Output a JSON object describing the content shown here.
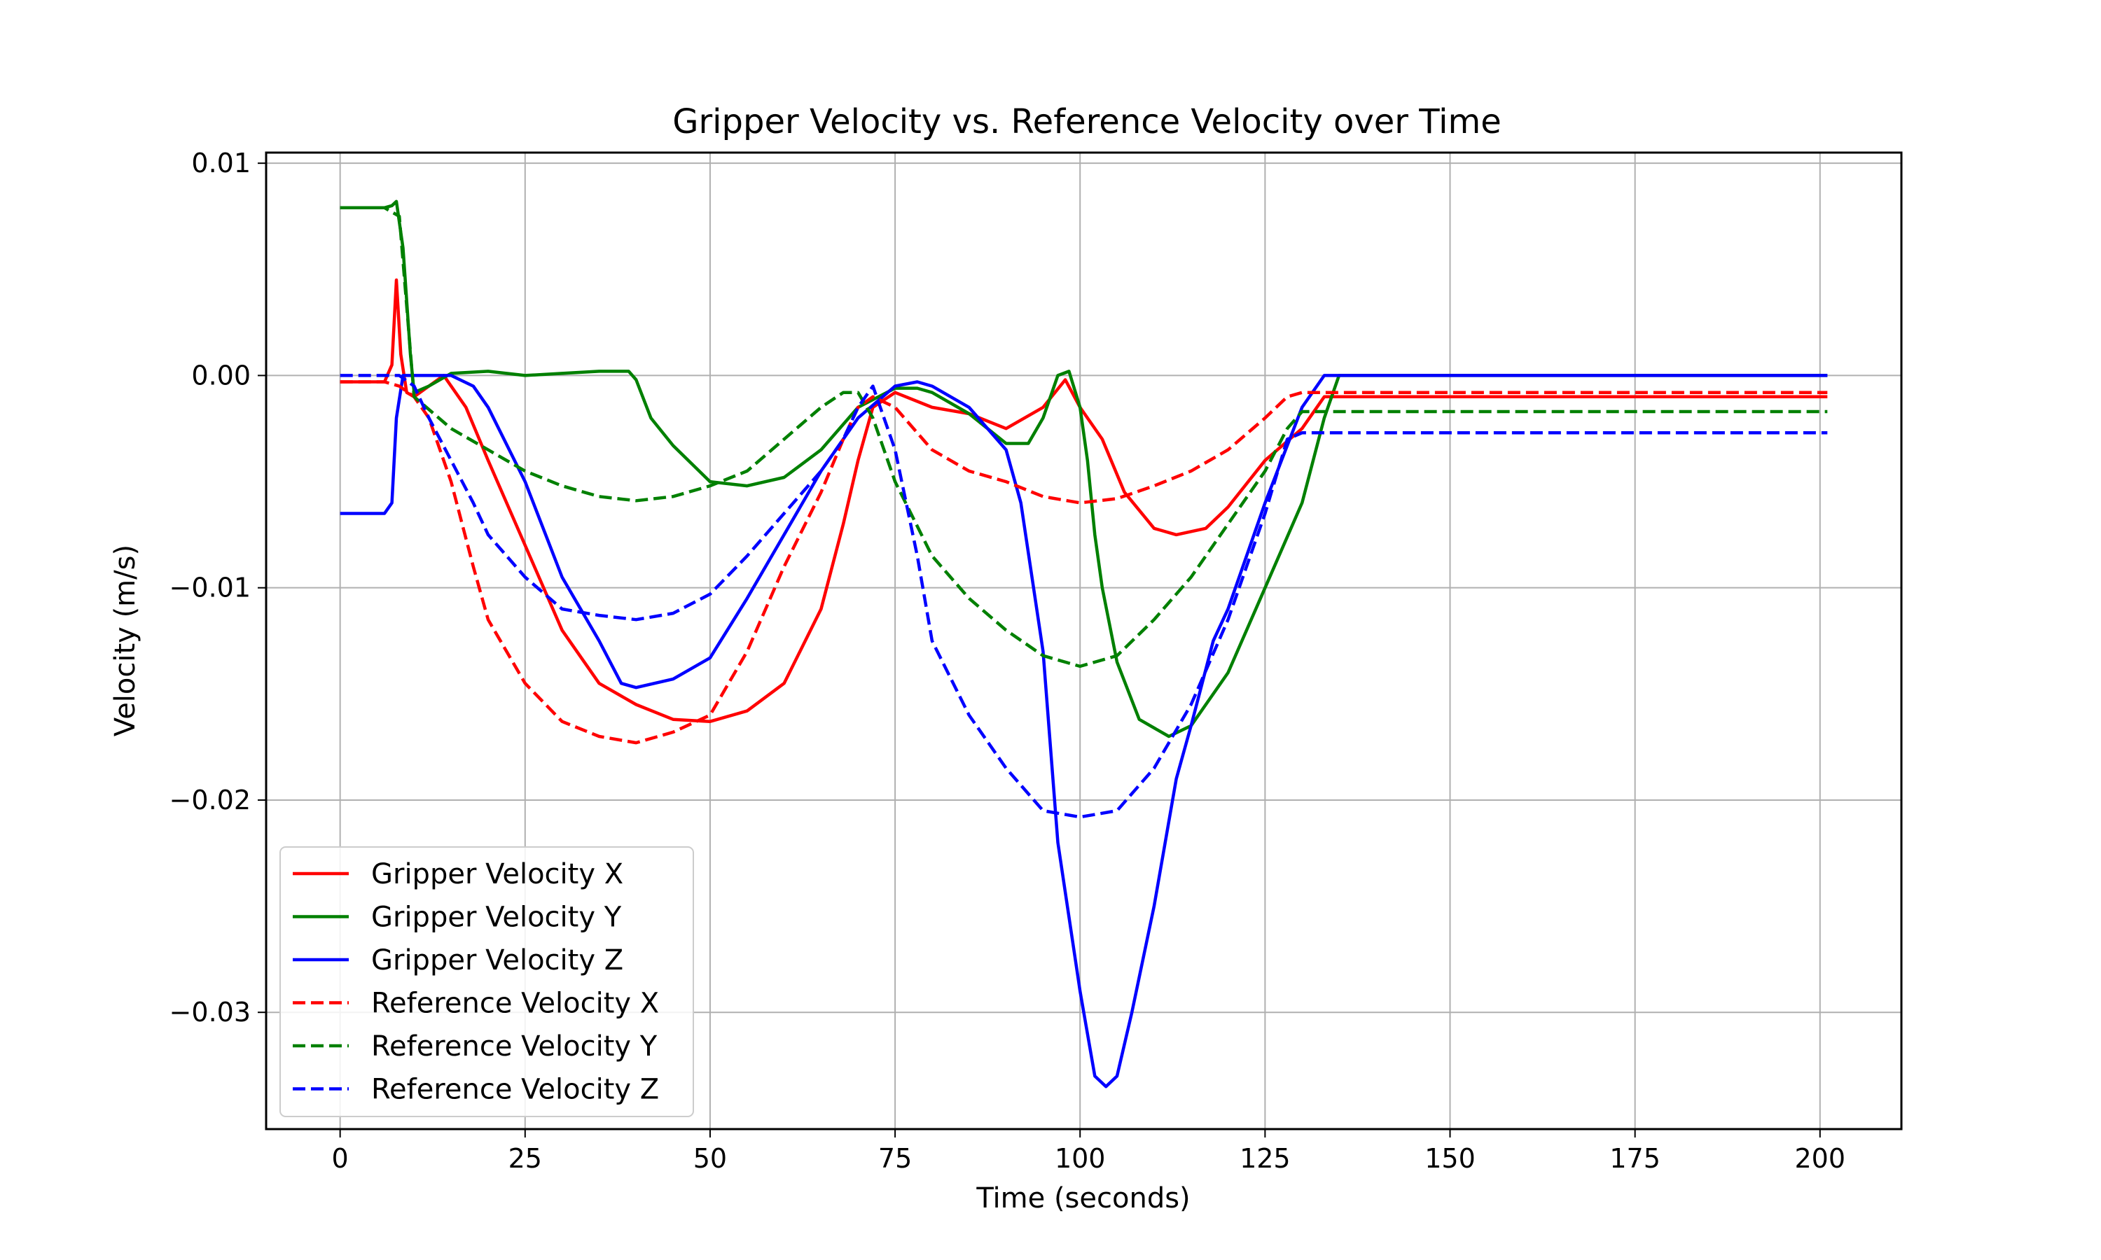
{
  "chart_data": {
    "type": "line",
    "title": "Gripper Velocity vs. Reference Velocity over Time",
    "xlabel": "Time (seconds)",
    "ylabel": "Velocity (m/s)",
    "xlim": [
      -10,
      211
    ],
    "ylim": [
      -0.0355,
      0.0105
    ],
    "xticks": [
      0,
      25,
      50,
      75,
      100,
      125,
      150,
      175,
      200
    ],
    "xtick_labels": [
      "0",
      "25",
      "50",
      "75",
      "100",
      "125",
      "150",
      "175",
      "200"
    ],
    "yticks": [
      0.01,
      0.0,
      -0.01,
      -0.02,
      -0.03
    ],
    "ytick_labels": [
      "0.01",
      "0.00",
      "−0.01",
      "−0.02",
      "−0.03"
    ],
    "grid": true,
    "legend_position": "lower-left",
    "series": [
      {
        "name": "Gripper Velocity X",
        "color": "#ff0000",
        "style": "solid",
        "x": [
          0,
          6,
          7,
          7.6,
          8.2,
          9,
          10,
          12,
          14,
          17,
          20,
          25,
          30,
          35,
          40,
          45,
          50,
          55,
          60,
          65,
          68,
          70,
          72,
          75,
          80,
          85,
          90,
          95,
          98,
          100,
          103,
          106,
          110,
          113,
          117,
          120,
          125,
          130,
          133,
          135,
          140,
          150,
          160,
          170,
          180,
          190,
          201
        ],
        "y": [
          -0.0003,
          -0.0003,
          0.0005,
          0.0045,
          0.001,
          -0.0008,
          -0.001,
          -0.0005,
          0.0,
          -0.0015,
          -0.004,
          -0.008,
          -0.012,
          -0.0145,
          -0.0155,
          -0.0162,
          -0.0163,
          -0.0158,
          -0.0145,
          -0.011,
          -0.007,
          -0.004,
          -0.0015,
          -0.0008,
          -0.0015,
          -0.0018,
          -0.0025,
          -0.0015,
          -0.0002,
          -0.0015,
          -0.003,
          -0.0055,
          -0.0072,
          -0.0075,
          -0.0072,
          -0.0062,
          -0.004,
          -0.0025,
          -0.001,
          -0.001,
          -0.001,
          -0.001,
          -0.001,
          -0.001,
          -0.001,
          -0.001,
          -0.001
        ]
      },
      {
        "name": "Gripper Velocity Y",
        "color": "#008000",
        "style": "solid",
        "x": [
          0,
          6,
          7,
          7.6,
          8.5,
          9.5,
          10,
          12,
          15,
          20,
          25,
          30,
          35,
          39,
          40,
          42,
          45,
          50,
          55,
          60,
          65,
          70,
          75,
          78,
          80,
          85,
          90,
          93,
          95,
          97,
          98.5,
          100,
          101,
          102,
          103,
          105,
          108,
          112,
          115,
          120,
          125,
          130,
          133,
          135,
          140,
          150,
          160,
          170,
          180,
          190,
          201
        ],
        "y": [
          0.0079,
          0.0079,
          0.008,
          0.0082,
          0.006,
          0.001,
          -0.0008,
          -0.0005,
          0.0001,
          0.0002,
          0.0,
          0.0001,
          0.0002,
          0.0002,
          -0.0002,
          -0.002,
          -0.0033,
          -0.005,
          -0.0052,
          -0.0048,
          -0.0035,
          -0.0015,
          -0.0006,
          -0.0006,
          -0.0008,
          -0.0018,
          -0.0032,
          -0.0032,
          -0.002,
          0.0,
          0.0002,
          -0.0015,
          -0.004,
          -0.0075,
          -0.01,
          -0.0135,
          -0.0162,
          -0.017,
          -0.0165,
          -0.014,
          -0.01,
          -0.006,
          -0.002,
          0.0,
          0.0,
          0.0,
          0.0,
          0.0,
          0.0,
          0.0,
          0.0
        ]
      },
      {
        "name": "Gripper Velocity Z",
        "color": "#0000ff",
        "style": "solid",
        "x": [
          0,
          6,
          7,
          7.6,
          8.5,
          10,
          15,
          18,
          20,
          25,
          30,
          35,
          38,
          40,
          45,
          50,
          55,
          60,
          65,
          70,
          75,
          78,
          80,
          85,
          90,
          92,
          95,
          97,
          100,
          102,
          103.5,
          105,
          107,
          110,
          113,
          115,
          118,
          120,
          125,
          130,
          133,
          135,
          140,
          150,
          160,
          170,
          180,
          190,
          201
        ],
        "y": [
          -0.0065,
          -0.0065,
          -0.006,
          -0.002,
          0.0,
          0.0,
          0.0,
          -0.0005,
          -0.0015,
          -0.005,
          -0.0095,
          -0.0125,
          -0.0145,
          -0.0147,
          -0.0143,
          -0.0133,
          -0.0105,
          -0.0075,
          -0.0045,
          -0.002,
          -0.0005,
          -0.0003,
          -0.0005,
          -0.0015,
          -0.0035,
          -0.006,
          -0.013,
          -0.022,
          -0.029,
          -0.033,
          -0.0335,
          -0.033,
          -0.03,
          -0.025,
          -0.019,
          -0.0165,
          -0.0125,
          -0.011,
          -0.006,
          -0.0015,
          0.0,
          0.0,
          0.0,
          0.0,
          0.0,
          0.0,
          0.0,
          0.0,
          0.0
        ]
      },
      {
        "name": "Reference Velocity X",
        "color": "#ff0000",
        "style": "dashed",
        "x": [
          0,
          6,
          8,
          10,
          12,
          15,
          18,
          20,
          25,
          30,
          35,
          40,
          45,
          50,
          55,
          60,
          65,
          68,
          70,
          72,
          75,
          80,
          85,
          90,
          95,
          100,
          105,
          110,
          115,
          120,
          125,
          128,
          130,
          135,
          140,
          150,
          160,
          170,
          180,
          190,
          201
        ],
        "y": [
          -0.0003,
          -0.0003,
          -0.0005,
          -0.001,
          -0.002,
          -0.005,
          -0.009,
          -0.0115,
          -0.0145,
          -0.0163,
          -0.017,
          -0.0173,
          -0.0168,
          -0.016,
          -0.013,
          -0.009,
          -0.0055,
          -0.003,
          -0.0015,
          -0.001,
          -0.0015,
          -0.0035,
          -0.0045,
          -0.005,
          -0.0057,
          -0.006,
          -0.0058,
          -0.0052,
          -0.0045,
          -0.0035,
          -0.002,
          -0.001,
          -0.0008,
          -0.0008,
          -0.0008,
          -0.0008,
          -0.0008,
          -0.0008,
          -0.0008,
          -0.0008,
          -0.0008
        ]
      },
      {
        "name": "Reference Velocity Y",
        "color": "#008000",
        "style": "dashed",
        "x": [
          0,
          6,
          8,
          10,
          15,
          20,
          25,
          30,
          35,
          40,
          45,
          50,
          55,
          60,
          65,
          68,
          70,
          72,
          75,
          80,
          85,
          90,
          95,
          100,
          105,
          110,
          115,
          120,
          125,
          128,
          130,
          135,
          140,
          150,
          160,
          170,
          180,
          190,
          201
        ],
        "y": [
          0.0079,
          0.0079,
          0.0075,
          -0.001,
          -0.0025,
          -0.0035,
          -0.0045,
          -0.0052,
          -0.0057,
          -0.0059,
          -0.0057,
          -0.0052,
          -0.0045,
          -0.003,
          -0.0015,
          -0.0008,
          -0.0008,
          -0.002,
          -0.005,
          -0.0085,
          -0.0105,
          -0.012,
          -0.0132,
          -0.0137,
          -0.0132,
          -0.0115,
          -0.0095,
          -0.007,
          -0.0045,
          -0.0025,
          -0.0017,
          -0.0017,
          -0.0017,
          -0.0017,
          -0.0017,
          -0.0017,
          -0.0017,
          -0.0017,
          -0.0017
        ]
      },
      {
        "name": "Reference Velocity Z",
        "color": "#0000ff",
        "style": "dashed",
        "x": [
          0,
          6,
          8,
          10,
          12,
          15,
          18,
          20,
          25,
          30,
          35,
          40,
          45,
          50,
          55,
          60,
          65,
          68,
          70,
          72,
          75,
          78,
          80,
          85,
          90,
          95,
          100,
          105,
          110,
          115,
          120,
          125,
          128,
          130,
          135,
          140,
          150,
          160,
          170,
          180,
          190,
          201
        ],
        "y": [
          0.0,
          0.0,
          0.0,
          -0.0005,
          -0.002,
          -0.004,
          -0.006,
          -0.0075,
          -0.0095,
          -0.011,
          -0.0113,
          -0.0115,
          -0.0112,
          -0.0103,
          -0.0085,
          -0.0065,
          -0.0045,
          -0.003,
          -0.0015,
          -0.0005,
          -0.0035,
          -0.0085,
          -0.0125,
          -0.016,
          -0.0185,
          -0.0205,
          -0.0208,
          -0.0205,
          -0.0185,
          -0.0155,
          -0.0115,
          -0.0065,
          -0.003,
          -0.0027,
          -0.0027,
          -0.0027,
          -0.0027,
          -0.0027,
          -0.0027,
          -0.0027,
          -0.0027,
          -0.0027
        ]
      }
    ]
  }
}
